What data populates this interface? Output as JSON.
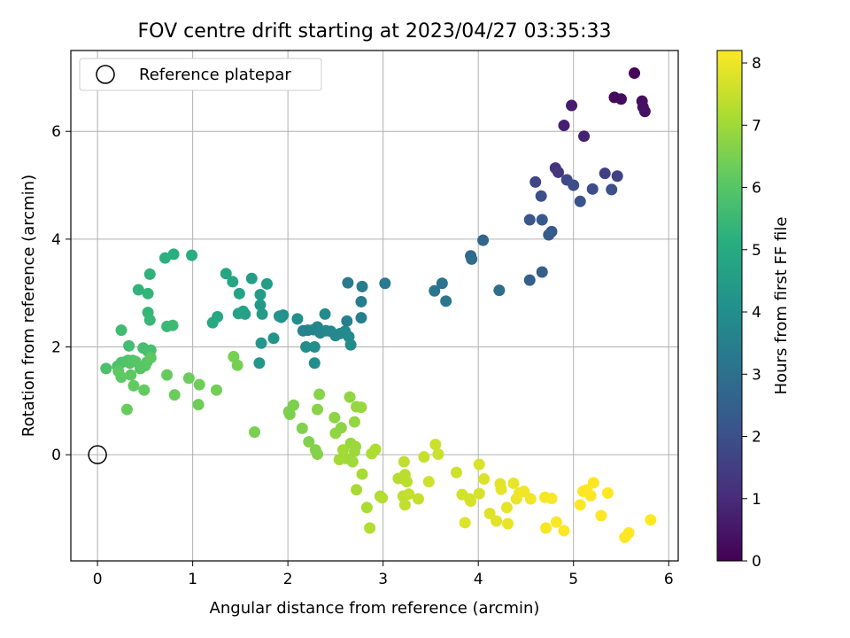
{
  "chart_data": {
    "type": "scatter",
    "title": "FOV centre drift starting at 2023/04/27 03:35:33",
    "xlabel": "Angular distance from reference (arcmin)",
    "ylabel": "Rotation from reference (arcmin)",
    "xlim": [
      -0.28,
      6.1
    ],
    "ylim": [
      -1.97,
      7.5
    ],
    "xticks": [
      0,
      1,
      2,
      3,
      4,
      5,
      6
    ],
    "yticks": [
      0,
      2,
      4,
      6
    ],
    "grid": true,
    "legend": {
      "position": "top-left",
      "entries": [
        "Reference platepar"
      ]
    },
    "reference_point": {
      "x": 0,
      "y": 0,
      "label": "Reference platepar"
    },
    "colorbar": {
      "label": "Hours from first FF file",
      "colormap": "viridis",
      "range": [
        0,
        8.2
      ],
      "ticks": [
        0,
        1,
        2,
        3,
        4,
        5,
        6,
        7,
        8
      ]
    },
    "series": [
      {
        "points": [
          [
            5.64,
            7.08,
            0.1
          ],
          [
            5.43,
            6.63,
            0.2
          ],
          [
            5.5,
            6.6,
            0.25
          ],
          [
            5.72,
            6.56,
            0.3
          ],
          [
            5.73,
            6.45,
            0.35
          ],
          [
            5.75,
            6.37,
            0.4
          ],
          [
            4.98,
            6.48,
            0.6
          ],
          [
            4.9,
            6.11,
            0.7
          ],
          [
            5.11,
            5.91,
            0.8
          ],
          [
            4.81,
            5.32,
            1.2
          ],
          [
            4.84,
            5.24,
            1.3
          ],
          [
            5.33,
            5.22,
            1.5
          ],
          [
            5.46,
            5.17,
            1.6
          ],
          [
            4.6,
            5.06,
            1.7
          ],
          [
            4.93,
            5.1,
            1.8
          ],
          [
            5.0,
            5.0,
            1.9
          ],
          [
            5.2,
            4.93,
            1.9
          ],
          [
            5.4,
            4.92,
            2.0
          ],
          [
            4.66,
            4.8,
            2.0
          ],
          [
            5.07,
            4.7,
            2.1
          ],
          [
            4.54,
            4.36,
            2.2
          ],
          [
            4.67,
            4.36,
            2.3
          ],
          [
            4.77,
            4.14,
            2.3
          ],
          [
            4.74,
            4.08,
            2.4
          ],
          [
            4.67,
            3.39,
            2.5
          ],
          [
            4.54,
            3.24,
            2.5
          ],
          [
            4.05,
            3.98,
            2.7
          ],
          [
            3.92,
            3.69,
            2.8
          ],
          [
            3.93,
            3.63,
            2.9
          ],
          [
            4.22,
            3.05,
            2.9
          ],
          [
            3.62,
            3.18,
            3.1
          ],
          [
            3.54,
            3.04,
            3.2
          ],
          [
            3.66,
            2.85,
            3.2
          ],
          [
            3.02,
            3.18,
            3.3
          ],
          [
            2.63,
            3.19,
            3.3
          ],
          [
            2.78,
            3.12,
            3.4
          ],
          [
            2.77,
            2.84,
            3.4
          ],
          [
            2.77,
            2.54,
            3.5
          ],
          [
            2.62,
            2.48,
            3.5
          ],
          [
            2.16,
            2.3,
            3.6
          ],
          [
            2.21,
            2.31,
            3.65
          ],
          [
            2.27,
            2.32,
            3.7
          ],
          [
            2.31,
            2.37,
            3.7
          ],
          [
            2.34,
            2.26,
            3.75
          ],
          [
            2.4,
            2.3,
            3.75
          ],
          [
            2.45,
            2.29,
            3.8
          ],
          [
            2.5,
            2.21,
            3.8
          ],
          [
            2.55,
            2.25,
            3.85
          ],
          [
            2.6,
            2.29,
            3.85
          ],
          [
            2.64,
            2.19,
            3.9
          ],
          [
            2.66,
            2.04,
            3.9
          ],
          [
            2.39,
            2.61,
            3.9
          ],
          [
            2.28,
            2.0,
            3.95
          ],
          [
            2.19,
            2.0,
            4.0
          ],
          [
            2.28,
            1.7,
            4.0
          ],
          [
            2.1,
            2.52,
            4.05
          ],
          [
            1.93,
            2.55,
            4.1
          ],
          [
            1.95,
            2.59,
            4.15
          ],
          [
            1.91,
            2.57,
            4.2
          ],
          [
            1.85,
            2.16,
            4.25
          ],
          [
            1.72,
            2.07,
            4.3
          ],
          [
            1.7,
            1.7,
            4.35
          ],
          [
            1.71,
            2.78,
            4.4
          ],
          [
            1.73,
            2.61,
            4.45
          ],
          [
            1.71,
            2.97,
            4.5
          ],
          [
            1.78,
            3.17,
            4.5
          ],
          [
            1.62,
            3.27,
            4.55
          ],
          [
            1.55,
            2.61,
            4.6
          ],
          [
            1.53,
            2.66,
            4.65
          ],
          [
            1.48,
            2.62,
            4.7
          ],
          [
            1.49,
            2.99,
            4.75
          ],
          [
            1.42,
            3.21,
            4.8
          ],
          [
            1.35,
            3.36,
            4.85
          ],
          [
            1.26,
            2.56,
            4.9
          ],
          [
            1.21,
            2.45,
            4.95
          ],
          [
            0.99,
            3.7,
            5.1
          ],
          [
            0.8,
            3.72,
            5.15
          ],
          [
            0.71,
            3.65,
            5.2
          ],
          [
            0.55,
            3.35,
            5.25
          ],
          [
            0.43,
            3.06,
            5.3
          ],
          [
            0.53,
            2.99,
            5.35
          ],
          [
            0.53,
            2.64,
            5.4
          ],
          [
            0.55,
            2.5,
            5.45
          ],
          [
            0.73,
            2.38,
            5.5
          ],
          [
            0.79,
            2.4,
            5.55
          ],
          [
            0.25,
            2.31,
            5.6
          ],
          [
            0.33,
            2.02,
            5.65
          ],
          [
            0.48,
            1.98,
            5.7
          ],
          [
            0.53,
            1.92,
            5.75
          ],
          [
            0.56,
            1.94,
            5.75
          ],
          [
            0.09,
            1.6,
            5.8
          ],
          [
            0.21,
            1.64,
            5.85
          ],
          [
            0.25,
            1.71,
            5.85
          ],
          [
            0.3,
            1.73,
            5.9
          ],
          [
            0.32,
            1.75,
            5.9
          ],
          [
            0.34,
            1.7,
            5.95
          ],
          [
            0.37,
            1.75,
            5.95
          ],
          [
            0.4,
            1.73,
            6.0
          ],
          [
            0.45,
            1.6,
            6.0
          ],
          [
            0.5,
            1.65,
            6.05
          ],
          [
            0.52,
            1.72,
            6.05
          ],
          [
            0.56,
            1.8,
            6.1
          ],
          [
            0.22,
            1.55,
            6.1
          ],
          [
            0.25,
            1.44,
            6.15
          ],
          [
            0.35,
            1.48,
            6.15
          ],
          [
            0.38,
            1.28,
            6.2
          ],
          [
            0.49,
            1.2,
            6.2
          ],
          [
            0.31,
            0.84,
            6.25
          ],
          [
            0.73,
            1.48,
            6.25
          ],
          [
            0.81,
            1.11,
            6.3
          ],
          [
            0.96,
            1.42,
            6.3
          ],
          [
            1.07,
            1.3,
            6.35
          ],
          [
            1.06,
            0.93,
            6.35
          ],
          [
            1.25,
            1.2,
            6.4
          ],
          [
            1.43,
            1.82,
            6.45
          ],
          [
            1.47,
            1.66,
            6.45
          ],
          [
            1.65,
            0.42,
            6.5
          ],
          [
            2.01,
            0.8,
            6.5
          ],
          [
            2.02,
            0.75,
            6.55
          ],
          [
            2.06,
            0.92,
            6.55
          ],
          [
            2.15,
            0.49,
            6.6
          ],
          [
            2.22,
            0.24,
            6.6
          ],
          [
            2.29,
            0.09,
            6.65
          ],
          [
            2.31,
            0.01,
            6.65
          ],
          [
            2.31,
            0.84,
            6.7
          ],
          [
            2.33,
            1.12,
            6.7
          ],
          [
            2.49,
            0.69,
            6.75
          ],
          [
            2.56,
            0.5,
            6.75
          ],
          [
            2.5,
            0.4,
            6.8
          ],
          [
            2.65,
            1.07,
            6.8
          ],
          [
            2.7,
            0.61,
            6.85
          ],
          [
            2.72,
            0.89,
            6.85
          ],
          [
            2.77,
            0.88,
            6.9
          ],
          [
            2.66,
            0.21,
            6.9
          ],
          [
            2.71,
            0.15,
            6.95
          ],
          [
            2.7,
            0.06,
            6.95
          ],
          [
            2.68,
            -0.13,
            7.0
          ],
          [
            2.61,
            -0.07,
            7.0
          ],
          [
            2.58,
            0.09,
            7.05
          ],
          [
            2.54,
            -0.09,
            7.05
          ],
          [
            2.78,
            -0.36,
            7.1
          ],
          [
            2.72,
            -0.65,
            7.1
          ],
          [
            2.83,
            -0.98,
            7.15
          ],
          [
            2.88,
            0.02,
            7.15
          ],
          [
            2.92,
            0.1,
            7.2
          ],
          [
            2.97,
            -0.77,
            7.2
          ],
          [
            2.99,
            -0.8,
            7.25
          ],
          [
            2.86,
            -1.36,
            7.25
          ],
          [
            3.16,
            -0.44,
            7.3
          ],
          [
            3.21,
            -0.44,
            7.3
          ],
          [
            3.23,
            -0.37,
            7.35
          ],
          [
            3.25,
            -0.5,
            7.35
          ],
          [
            3.22,
            -0.13,
            7.4
          ],
          [
            3.21,
            -0.77,
            7.4
          ],
          [
            3.27,
            -0.73,
            7.45
          ],
          [
            3.23,
            -0.93,
            7.45
          ],
          [
            3.37,
            -0.82,
            7.5
          ],
          [
            3.43,
            -0.04,
            7.5
          ],
          [
            3.55,
            0.19,
            7.55
          ],
          [
            3.58,
            0.01,
            7.55
          ],
          [
            3.48,
            -0.5,
            7.6
          ],
          [
            3.77,
            -0.33,
            7.6
          ],
          [
            3.83,
            -0.74,
            7.65
          ],
          [
            3.91,
            -0.82,
            7.65
          ],
          [
            3.92,
            -0.86,
            7.7
          ],
          [
            4.01,
            -0.72,
            7.7
          ],
          [
            4.01,
            -0.18,
            7.75
          ],
          [
            4.06,
            -0.45,
            7.75
          ],
          [
            3.86,
            -1.26,
            7.8
          ],
          [
            4.12,
            -1.09,
            7.8
          ],
          [
            4.19,
            -1.23,
            7.85
          ],
          [
            4.23,
            -0.54,
            7.85
          ],
          [
            4.24,
            -0.64,
            7.9
          ],
          [
            4.3,
            -0.98,
            7.9
          ],
          [
            4.31,
            -1.28,
            7.95
          ],
          [
            4.37,
            -0.53,
            7.95
          ],
          [
            4.4,
            -0.82,
            8.0
          ],
          [
            4.43,
            -0.71,
            8.0
          ],
          [
            4.48,
            -0.68,
            8.05
          ],
          [
            4.55,
            -0.82,
            8.05
          ],
          [
            4.7,
            -0.79,
            8.1
          ],
          [
            4.71,
            -1.36,
            8.1
          ],
          [
            4.77,
            -0.81,
            8.15
          ],
          [
            4.82,
            -1.25,
            8.15
          ],
          [
            4.9,
            -1.41,
            8.2
          ],
          [
            5.07,
            -0.93,
            8.2
          ],
          [
            5.1,
            -0.68,
            8.2
          ],
          [
            5.14,
            -0.65,
            8.2
          ],
          [
            5.18,
            -0.76,
            8.2
          ],
          [
            5.21,
            -0.52,
            8.2
          ],
          [
            5.29,
            -1.13,
            8.2
          ],
          [
            5.36,
            -0.71,
            8.2
          ],
          [
            5.54,
            -1.53,
            8.2
          ],
          [
            5.58,
            -1.45,
            8.2
          ],
          [
            5.81,
            -1.21,
            8.2
          ]
        ]
      }
    ]
  }
}
